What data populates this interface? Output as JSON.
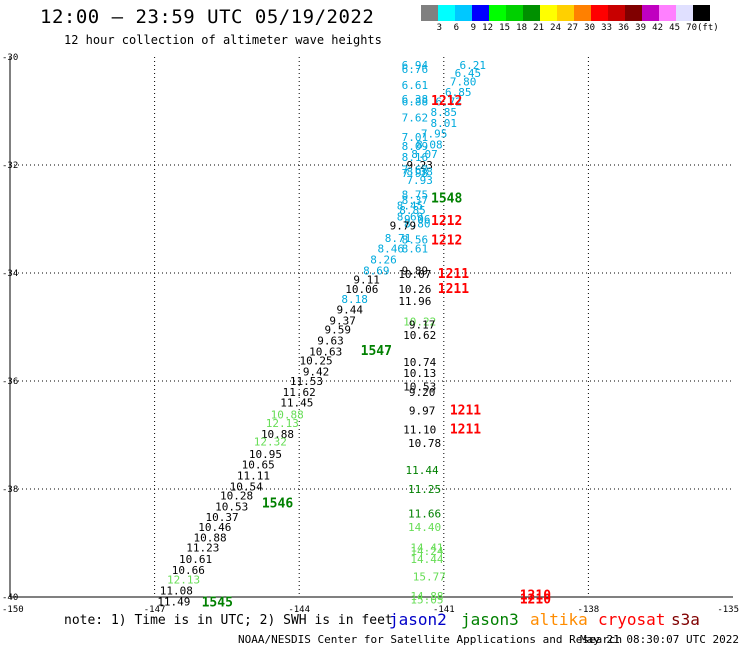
{
  "header": {
    "title": "12:00 — 23:59 UTC 05/19/2022",
    "subtitle": "12 hour collection of altimeter wave heights"
  },
  "colorbar": {
    "colors": [
      "#808080",
      "#00ffff",
      "#00c8ff",
      "#0000ff",
      "#00ff00",
      "#00d000",
      "#009000",
      "#ffff00",
      "#ffd000",
      "#ff8000",
      "#ff0000",
      "#c80000",
      "#800000",
      "#c000c0",
      "#ff80ff",
      "#e0e0ff",
      "#000000"
    ],
    "labels": [
      "3",
      "6",
      "9",
      "12",
      "15",
      "18",
      "21",
      "24",
      "27",
      "30",
      "33",
      "36",
      "39",
      "42",
      "45",
      "70",
      "(ft)"
    ]
  },
  "chart_data": {
    "type": "scatter",
    "title": "12 hour collection of altimeter wave heights",
    "xlim": [
      -150,
      -135
    ],
    "ylim": [
      -40,
      -30
    ],
    "x_ticks": [
      "-150",
      "-147",
      "-144",
      "-141",
      "-138",
      "-135"
    ],
    "y_ticks": [
      "-30",
      "-32",
      "-34",
      "-36",
      "-38",
      "-40"
    ],
    "grid": true,
    "colors": {
      "jason2": "#0000c8",
      "jason3": "#008000",
      "altika": "#ff8c00",
      "cryosat": "#ff0000",
      "s3a": "#800000",
      "cyan": "#00aadd",
      "light_green": "#66dd55",
      "dark_green": "#008000",
      "red": "#ff0000"
    },
    "values": [
      {
        "x": -141.6,
        "y": -30.15,
        "label": "6.94",
        "c": "cyan"
      },
      {
        "x": -140.4,
        "y": -30.15,
        "label": "6.21",
        "c": "cyan"
      },
      {
        "x": -141.6,
        "y": -30.22,
        "label": "6.76",
        "c": "cyan"
      },
      {
        "x": -140.5,
        "y": -30.3,
        "label": "6.45",
        "c": "cyan"
      },
      {
        "x": -140.6,
        "y": -30.45,
        "label": "7.80",
        "c": "cyan"
      },
      {
        "x": -141.6,
        "y": -30.52,
        "label": "6.61",
        "c": "cyan"
      },
      {
        "x": -140.7,
        "y": -30.65,
        "label": "6.85",
        "c": "cyan"
      },
      {
        "x": -141.6,
        "y": -30.78,
        "label": "6.38",
        "c": "cyan"
      },
      {
        "x": -141.6,
        "y": -30.82,
        "label": "6.88",
        "c": "cyan"
      },
      {
        "x": -140.9,
        "y": -30.82,
        "label": "6.72",
        "c": "cyan"
      },
      {
        "x": -140.94,
        "y": -30.8,
        "label": "1212",
        "c": "red",
        "big": true
      },
      {
        "x": -141.0,
        "y": -31.02,
        "label": "8.85",
        "c": "cyan"
      },
      {
        "x": -141.6,
        "y": -31.12,
        "label": "7.62",
        "c": "cyan"
      },
      {
        "x": -141.0,
        "y": -31.22,
        "label": "8.01",
        "c": "cyan"
      },
      {
        "x": -141.2,
        "y": -31.42,
        "label": "7.95",
        "c": "cyan"
      },
      {
        "x": -141.6,
        "y": -31.48,
        "label": "7.01",
        "c": "cyan"
      },
      {
        "x": -141.3,
        "y": -31.62,
        "label": "8.08",
        "c": "cyan"
      },
      {
        "x": -141.6,
        "y": -31.65,
        "label": "8.09",
        "c": "cyan"
      },
      {
        "x": -141.4,
        "y": -31.8,
        "label": "8.07",
        "c": "cyan"
      },
      {
        "x": -141.6,
        "y": -31.85,
        "label": "8.16",
        "c": "cyan"
      },
      {
        "x": -141.5,
        "y": -32.0,
        "label": "9.23",
        "c": "blue"
      },
      {
        "x": -141.6,
        "y": -32.08,
        "label": "7.67",
        "c": "cyan"
      },
      {
        "x": -141.5,
        "y": -32.12,
        "label": "8.38",
        "c": "cyan"
      },
      {
        "x": -141.6,
        "y": -32.15,
        "label": "7.98",
        "c": "cyan"
      },
      {
        "x": -141.5,
        "y": -32.28,
        "label": "7.93",
        "c": "cyan"
      },
      {
        "x": -141.6,
        "y": -32.55,
        "label": "8.75",
        "c": "cyan"
      },
      {
        "x": -140.94,
        "y": -32.6,
        "label": "1548",
        "c": "dark_green",
        "big": true
      },
      {
        "x": -141.6,
        "y": -32.65,
        "label": "8.37",
        "c": "cyan"
      },
      {
        "x": -141.7,
        "y": -32.75,
        "label": "8.45",
        "c": "cyan"
      },
      {
        "x": -141.65,
        "y": -32.83,
        "label": "8.85",
        "c": "cyan"
      },
      {
        "x": -141.7,
        "y": -32.95,
        "label": "8.69",
        "c": "cyan"
      },
      {
        "x": -141.55,
        "y": -33.0,
        "label": "9.06",
        "c": "cyan"
      },
      {
        "x": -141.55,
        "y": -33.08,
        "label": "8.80",
        "c": "cyan"
      },
      {
        "x": -140.94,
        "y": -33.02,
        "label": "1212",
        "c": "red",
        "big": true
      },
      {
        "x": -141.85,
        "y": -33.12,
        "label": "9.79",
        "c": "blue"
      },
      {
        "x": -141.95,
        "y": -33.35,
        "label": "8.71",
        "c": "cyan"
      },
      {
        "x": -141.6,
        "y": -33.38,
        "label": "8.56",
        "c": "cyan"
      },
      {
        "x": -140.94,
        "y": -33.38,
        "label": "1212",
        "c": "red",
        "big": true
      },
      {
        "x": -142.1,
        "y": -33.55,
        "label": "8.46",
        "c": "cyan"
      },
      {
        "x": -141.6,
        "y": -33.55,
        "label": "8.61",
        "c": "cyan"
      },
      {
        "x": -142.25,
        "y": -33.75,
        "label": "8.26",
        "c": "cyan"
      },
      {
        "x": -142.4,
        "y": -33.95,
        "label": "8.69",
        "c": "cyan"
      },
      {
        "x": -141.6,
        "y": -33.95,
        "label": "9.89",
        "c": "blue"
      },
      {
        "x": -141.6,
        "y": -34.02,
        "label": "10.07",
        "c": "blue"
      },
      {
        "x": -140.8,
        "y": -34.0,
        "label": "1211",
        "c": "red",
        "big": true
      },
      {
        "x": -142.6,
        "y": -34.12,
        "label": "9.11",
        "c": "blue"
      },
      {
        "x": -142.7,
        "y": -34.3,
        "label": "10.06",
        "c": "blue"
      },
      {
        "x": -141.6,
        "y": -34.3,
        "label": "10.26",
        "c": "blue"
      },
      {
        "x": -140.8,
        "y": -34.28,
        "label": "1211",
        "c": "red",
        "big": true
      },
      {
        "x": -142.85,
        "y": -34.48,
        "label": "8.18",
        "c": "cyan"
      },
      {
        "x": -141.6,
        "y": -34.52,
        "label": "11.96",
        "c": "blue"
      },
      {
        "x": -142.95,
        "y": -34.68,
        "label": "9.44",
        "c": "blue"
      },
      {
        "x": -143.1,
        "y": -34.88,
        "label": "9.37",
        "c": "blue"
      },
      {
        "x": -141.5,
        "y": -34.9,
        "label": "10.22",
        "c": "light_green"
      },
      {
        "x": -141.45,
        "y": -34.95,
        "label": "9.17",
        "c": "blue"
      },
      {
        "x": -143.2,
        "y": -35.05,
        "label": "9.59",
        "c": "blue"
      },
      {
        "x": -141.5,
        "y": -35.15,
        "label": "10.62",
        "c": "blue"
      },
      {
        "x": -143.35,
        "y": -35.25,
        "label": "9.63",
        "c": "blue"
      },
      {
        "x": -143.45,
        "y": -35.45,
        "label": "10.63",
        "c": "blue"
      },
      {
        "x": -142.4,
        "y": -35.43,
        "label": "1547",
        "c": "dark_green",
        "big": true
      },
      {
        "x": -143.65,
        "y": -35.62,
        "label": "10.25",
        "c": "blue"
      },
      {
        "x": -141.5,
        "y": -35.65,
        "label": "10.74",
        "c": "blue"
      },
      {
        "x": -143.65,
        "y": -35.82,
        "label": "9.42",
        "c": "blue"
      },
      {
        "x": -141.5,
        "y": -35.85,
        "label": "10.13",
        "c": "blue"
      },
      {
        "x": -143.85,
        "y": -36.0,
        "label": "11.53",
        "c": "blue"
      },
      {
        "x": -141.5,
        "y": -36.1,
        "label": "10.53",
        "c": "blue"
      },
      {
        "x": -141.45,
        "y": -36.2,
        "label": "9.20",
        "c": "blue"
      },
      {
        "x": -144.0,
        "y": -36.2,
        "label": "11.62",
        "c": "blue"
      },
      {
        "x": -144.05,
        "y": -36.4,
        "label": "11.45",
        "c": "blue"
      },
      {
        "x": -141.45,
        "y": -36.55,
        "label": "9.97",
        "c": "blue"
      },
      {
        "x": -140.55,
        "y": -36.53,
        "label": "1211",
        "c": "red",
        "big": true
      },
      {
        "x": -144.25,
        "y": -36.62,
        "label": "10.88",
        "c": "light_green"
      },
      {
        "x": -144.35,
        "y": -36.78,
        "label": "12.13",
        "c": "light_green"
      },
      {
        "x": -141.5,
        "y": -36.9,
        "label": "11.10",
        "c": "blue"
      },
      {
        "x": -140.55,
        "y": -36.88,
        "label": "1211",
        "c": "red",
        "big": true
      },
      {
        "x": -144.45,
        "y": -36.98,
        "label": "10.88",
        "c": "blue"
      },
      {
        "x": -141.4,
        "y": -37.15,
        "label": "10.78",
        "c": "blue"
      },
      {
        "x": -144.6,
        "y": -37.12,
        "label": "12.32",
        "c": "light_green"
      },
      {
        "x": -144.7,
        "y": -37.35,
        "label": "10.95",
        "c": "blue"
      },
      {
        "x": -144.85,
        "y": -37.55,
        "label": "10.65",
        "c": "blue"
      },
      {
        "x": -141.45,
        "y": -37.65,
        "label": "11.44",
        "c": "dark_green"
      },
      {
        "x": -144.95,
        "y": -37.75,
        "label": "11.11",
        "c": "blue"
      },
      {
        "x": -145.1,
        "y": -37.95,
        "label": "10.54",
        "c": "blue"
      },
      {
        "x": -141.4,
        "y": -38.0,
        "label": "11.25",
        "c": "dark_green"
      },
      {
        "x": -145.3,
        "y": -38.12,
        "label": "10.28",
        "c": "blue"
      },
      {
        "x": -144.45,
        "y": -38.25,
        "label": "1546",
        "c": "dark_green",
        "big": true
      },
      {
        "x": -145.4,
        "y": -38.32,
        "label": "10.53",
        "c": "blue"
      },
      {
        "x": -141.4,
        "y": -38.45,
        "label": "11.66",
        "c": "dark_green"
      },
      {
        "x": -145.6,
        "y": -38.52,
        "label": "10.37",
        "c": "blue"
      },
      {
        "x": -141.4,
        "y": -38.7,
        "label": "14.40",
        "c": "light_green"
      },
      {
        "x": -145.75,
        "y": -38.7,
        "label": "10.46",
        "c": "blue"
      },
      {
        "x": -145.85,
        "y": -38.9,
        "label": "10.88",
        "c": "blue"
      },
      {
        "x": -141.35,
        "y": -39.08,
        "label": "14.41",
        "c": "light_green"
      },
      {
        "x": -146.0,
        "y": -39.08,
        "label": "11.23",
        "c": "blue"
      },
      {
        "x": -141.35,
        "y": -39.15,
        "label": "14.24",
        "c": "light_green"
      },
      {
        "x": -141.35,
        "y": -39.3,
        "label": "14.44",
        "c": "light_green"
      },
      {
        "x": -146.15,
        "y": -39.3,
        "label": "10.61",
        "c": "blue"
      },
      {
        "x": -146.3,
        "y": -39.5,
        "label": "10.66",
        "c": "blue"
      },
      {
        "x": -141.3,
        "y": -39.62,
        "label": "15.77",
        "c": "light_green"
      },
      {
        "x": -146.4,
        "y": -39.68,
        "label": "12.13",
        "c": "light_green"
      },
      {
        "x": -146.55,
        "y": -39.88,
        "label": "11.08",
        "c": "blue"
      },
      {
        "x": -141.35,
        "y": -39.98,
        "label": "14.88",
        "c": "light_green"
      },
      {
        "x": -141.35,
        "y": -40.05,
        "label": "15.05",
        "c": "light_green"
      },
      {
        "x": -139.1,
        "y": -39.95,
        "label": "1210",
        "c": "red",
        "big": true
      },
      {
        "x": -139.1,
        "y": -40.03,
        "label": "1210",
        "c": "red",
        "big": true
      },
      {
        "x": -146.6,
        "y": -40.08,
        "label": "11.49",
        "c": "blue"
      },
      {
        "x": -145.7,
        "y": -40.08,
        "label": "1545",
        "c": "dark_green",
        "big": true
      }
    ]
  },
  "legend": {
    "note": "note: 1) Time is in UTC; 2) SWH is in feet",
    "satellites": [
      {
        "name": "jason2",
        "color": "#0000c8"
      },
      {
        "name": "jason3",
        "color": "#008000"
      },
      {
        "name": "altika",
        "color": "#ff8c00"
      },
      {
        "name": "cryosat",
        "color": "#ff0000"
      },
      {
        "name": "s3a",
        "color": "#800000"
      }
    ]
  },
  "footer": {
    "credit": "NOAA/NESDIS Center for Satellite Applications and Research",
    "timestamp": "May 21 08:30:07 UTC 2022"
  }
}
